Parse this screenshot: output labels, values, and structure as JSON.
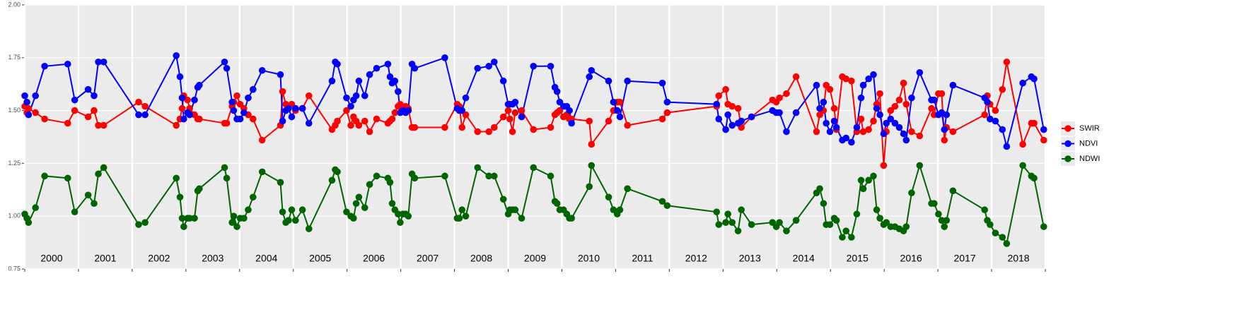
{
  "chart_data": {
    "type": "line",
    "x": [
      2000.0,
      2000.04,
      2000.07,
      2000.2,
      2000.37,
      2000.8,
      2000.93,
      2001.18,
      2001.29,
      2001.37,
      2001.47,
      2002.12,
      2002.24,
      2002.82,
      2002.89,
      2002.93,
      2002.96,
      2003.03,
      2003.07,
      2003.16,
      2003.22,
      2003.25,
      2003.72,
      2003.76,
      2003.86,
      2003.89,
      2003.95,
      2004.01,
      2004.08,
      2004.16,
      2004.25,
      2004.42,
      2004.76,
      2004.8,
      2004.86,
      2004.91,
      2004.97,
      2005.04,
      2005.17,
      2005.29,
      2005.72,
      2005.78,
      2005.82,
      2005.99,
      2006.07,
      2006.12,
      2006.17,
      2006.22,
      2006.33,
      2006.42,
      2006.55,
      2006.76,
      2006.8,
      2006.84,
      2006.89,
      2006.95,
      2006.99,
      2007.04,
      2007.09,
      2007.14,
      2007.21,
      2007.26,
      2007.82,
      2008.05,
      2008.09,
      2008.14,
      2008.21,
      2008.43,
      2008.64,
      2008.74,
      2008.91,
      2009.0,
      2009.03,
      2009.08,
      2009.13,
      2009.25,
      2009.47,
      2009.79,
      2009.87,
      2009.91,
      2009.96,
      2010.03,
      2010.09,
      2010.14,
      2010.18,
      2010.51,
      2010.55,
      2010.87,
      2010.96,
      2011.03,
      2011.08,
      2011.22,
      2011.87,
      2011.96,
      2012.88,
      2012.92,
      2013.05,
      2013.09,
      2013.17,
      2013.28,
      2013.34,
      2013.53,
      2013.92,
      2013.99,
      2014.05,
      2014.18,
      2014.36,
      2014.74,
      2014.8,
      2014.87,
      2014.92,
      2014.99,
      2015.07,
      2015.11,
      2015.22,
      2015.29,
      2015.39,
      2015.49,
      2015.57,
      2015.61,
      2015.71,
      2015.8,
      2015.86,
      2015.92,
      2015.99,
      2016.04,
      2016.12,
      2016.2,
      2016.28,
      2016.36,
      2016.41,
      2016.51,
      2016.66,
      2016.88,
      2016.93,
      2017.01,
      2017.07,
      2017.12,
      2017.16,
      2017.28,
      2017.87,
      2017.92,
      2017.97,
      2018.07,
      2018.2,
      2018.28,
      2018.58,
      2018.74,
      2018.79,
      2018.97
    ],
    "series": [
      {
        "name": "SWIR",
        "color": "#FF0000",
        "values": [
          1.52,
          1.49,
          1.51,
          1.49,
          1.46,
          1.44,
          1.5,
          1.47,
          1.5,
          1.43,
          1.43,
          1.54,
          1.52,
          1.43,
          1.46,
          1.51,
          1.57,
          1.55,
          1.51,
          1.48,
          1.46,
          1.46,
          1.44,
          1.44,
          1.52,
          1.54,
          1.57,
          1.53,
          1.51,
          1.48,
          1.46,
          1.36,
          1.43,
          1.59,
          1.53,
          1.51,
          1.53,
          1.5,
          1.51,
          1.57,
          1.41,
          1.43,
          1.45,
          1.5,
          1.43,
          1.47,
          1.45,
          1.43,
          1.45,
          1.4,
          1.46,
          1.44,
          1.45,
          1.46,
          1.49,
          1.52,
          1.53,
          1.51,
          1.52,
          1.51,
          1.42,
          1.42,
          1.42,
          1.53,
          1.52,
          1.42,
          1.48,
          1.4,
          1.4,
          1.42,
          1.47,
          1.5,
          1.46,
          1.4,
          1.49,
          1.5,
          1.41,
          1.42,
          1.48,
          1.49,
          1.5,
          1.47,
          1.48,
          1.46,
          1.46,
          1.45,
          1.34,
          1.45,
          1.5,
          1.54,
          1.54,
          1.43,
          1.46,
          1.49,
          1.52,
          1.57,
          1.6,
          1.53,
          1.52,
          1.51,
          1.42,
          1.47,
          1.55,
          1.54,
          1.56,
          1.58,
          1.66,
          1.4,
          1.48,
          1.5,
          1.62,
          1.6,
          1.51,
          1.41,
          1.66,
          1.65,
          1.64,
          1.4,
          1.46,
          1.4,
          1.41,
          1.45,
          1.53,
          1.58,
          1.24,
          1.4,
          1.5,
          1.52,
          1.55,
          1.63,
          1.53,
          1.4,
          1.38,
          1.51,
          1.48,
          1.58,
          1.58,
          1.36,
          1.42,
          1.4,
          1.48,
          1.57,
          1.53,
          1.5,
          1.6,
          1.73,
          1.34,
          1.44,
          1.44,
          1.36
        ]
      },
      {
        "name": "NDVI",
        "color": "#0000FF",
        "values": [
          1.57,
          1.54,
          1.48,
          1.57,
          1.71,
          1.72,
          1.55,
          1.6,
          1.57,
          1.73,
          1.73,
          1.48,
          1.48,
          1.76,
          1.66,
          1.56,
          1.46,
          1.49,
          1.48,
          1.55,
          1.61,
          1.62,
          1.73,
          1.7,
          1.54,
          1.5,
          1.46,
          1.46,
          1.49,
          1.56,
          1.6,
          1.69,
          1.67,
          1.45,
          1.5,
          1.51,
          1.47,
          1.51,
          1.51,
          1.44,
          1.64,
          1.73,
          1.72,
          1.56,
          1.52,
          1.55,
          1.57,
          1.64,
          1.57,
          1.67,
          1.7,
          1.72,
          1.66,
          1.63,
          1.64,
          1.59,
          1.49,
          1.5,
          1.49,
          1.5,
          1.72,
          1.7,
          1.75,
          1.51,
          1.5,
          1.5,
          1.56,
          1.7,
          1.71,
          1.73,
          1.64,
          1.53,
          1.53,
          1.53,
          1.54,
          1.47,
          1.71,
          1.71,
          1.61,
          1.59,
          1.54,
          1.52,
          1.52,
          1.5,
          1.44,
          1.66,
          1.69,
          1.64,
          1.54,
          1.5,
          1.47,
          1.64,
          1.63,
          1.54,
          1.53,
          1.46,
          1.41,
          1.48,
          1.43,
          1.44,
          1.45,
          1.47,
          1.5,
          1.49,
          1.49,
          1.4,
          1.49,
          1.62,
          1.51,
          1.54,
          1.44,
          1.4,
          1.45,
          1.42,
          1.36,
          1.37,
          1.35,
          1.42,
          1.56,
          1.62,
          1.65,
          1.67,
          1.51,
          1.48,
          1.39,
          1.44,
          1.46,
          1.44,
          1.42,
          1.39,
          1.36,
          1.56,
          1.68,
          1.55,
          1.55,
          1.48,
          1.49,
          1.41,
          1.48,
          1.62,
          1.56,
          1.54,
          1.46,
          1.45,
          1.41,
          1.33,
          1.63,
          1.66,
          1.65,
          1.41
        ]
      },
      {
        "name": "NDWI",
        "color": "#006400",
        "values": [
          1.01,
          0.99,
          0.97,
          1.04,
          1.19,
          1.18,
          1.02,
          1.1,
          1.06,
          1.2,
          1.23,
          0.96,
          0.97,
          1.18,
          1.09,
          0.99,
          0.95,
          0.99,
          0.99,
          0.99,
          1.12,
          1.13,
          1.23,
          1.18,
          0.97,
          1.0,
          0.95,
          0.99,
          0.99,
          1.03,
          1.09,
          1.21,
          1.16,
          1.02,
          0.97,
          0.98,
          1.03,
          0.98,
          1.03,
          0.94,
          1.17,
          1.22,
          1.21,
          1.02,
          1.0,
          0.99,
          1.06,
          1.09,
          1.04,
          1.15,
          1.19,
          1.18,
          1.16,
          1.06,
          1.03,
          1.01,
          0.97,
          1.01,
          1.01,
          1.0,
          1.2,
          1.18,
          1.19,
          0.99,
          0.99,
          1.03,
          1.0,
          1.23,
          1.19,
          1.19,
          1.08,
          1.01,
          1.03,
          1.03,
          1.03,
          0.99,
          1.23,
          1.19,
          1.07,
          1.06,
          1.03,
          1.03,
          1.01,
          0.99,
          0.99,
          1.14,
          1.24,
          1.09,
          1.03,
          1.01,
          1.03,
          1.13,
          1.07,
          1.05,
          1.02,
          0.96,
          0.97,
          1.01,
          0.97,
          0.93,
          1.03,
          0.96,
          0.97,
          0.95,
          0.97,
          0.93,
          0.98,
          1.11,
          1.13,
          1.06,
          0.96,
          0.96,
          0.99,
          0.98,
          0.9,
          0.93,
          0.9,
          1.01,
          1.17,
          1.13,
          1.17,
          1.19,
          1.03,
          0.99,
          0.96,
          0.97,
          0.95,
          0.95,
          0.94,
          0.93,
          0.95,
          1.11,
          1.24,
          1.06,
          1.06,
          1.01,
          0.98,
          0.95,
          0.98,
          1.12,
          1.03,
          0.98,
          0.96,
          0.92,
          0.9,
          0.87,
          1.24,
          1.19,
          1.18,
          0.95
        ]
      }
    ],
    "xlim": [
      2000,
      2019
    ],
    "xticks": [
      2000,
      2001,
      2002,
      2003,
      2004,
      2005,
      2006,
      2007,
      2008,
      2009,
      2010,
      2011,
      2012,
      2013,
      2014,
      2015,
      2016,
      2017,
      2018,
      2019
    ],
    "year_labels": [
      "2000",
      "2001",
      "2002",
      "2003",
      "2004",
      "2005",
      "2006",
      "2007",
      "2008",
      "2009",
      "2010",
      "2011",
      "2012",
      "2013",
      "2014",
      "2015",
      "2016",
      "2017",
      "2018"
    ],
    "ylim": [
      0.75,
      2
    ],
    "yticks": [
      0.75,
      {
        "value": 1,
        "label": "1.00"
      },
      1.25,
      {
        "value": 1.5,
        "label": "1.50"
      },
      1.75,
      {
        "value": 2,
        "label": "2.00"
      }
    ],
    "grid": true,
    "legend": "right"
  }
}
